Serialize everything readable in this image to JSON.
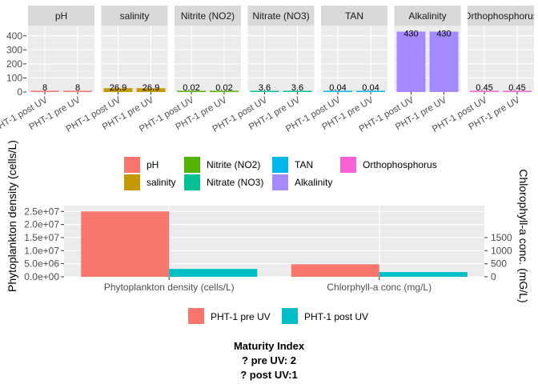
{
  "chart_data": [
    {
      "type": "bar",
      "facet_type": "faceted-bar",
      "facets": [
        "pH",
        "salinity",
        "Nitrite (NO2)",
        "Nitrate (NO3)",
        "TAN",
        "Alkalinity",
        "Orthophosphorus"
      ],
      "categories": [
        "PHT-1 post UV",
        "PHT-1 pre UV"
      ],
      "series": [
        {
          "name": "pH",
          "values": [
            8,
            8
          ],
          "labels": [
            "8",
            "8"
          ],
          "color": "#F8766D"
        },
        {
          "name": "salinity",
          "values": [
            26.9,
            26.9
          ],
          "labels": [
            "26.9",
            "26.9"
          ],
          "color": "#C49A00"
        },
        {
          "name": "Nitrite (NO2)",
          "values": [
            0.02,
            0.02
          ],
          "labels": [
            "0.02",
            "0.02"
          ],
          "color": "#53B400"
        },
        {
          "name": "Nitrate (NO3)",
          "values": [
            3.6,
            3.6
          ],
          "labels": [
            "3.6",
            "3.6"
          ],
          "color": "#00C094"
        },
        {
          "name": "TAN",
          "values": [
            0.04,
            0.04
          ],
          "labels": [
            "0.04",
            "0.04"
          ],
          "color": "#00B6EB"
        },
        {
          "name": "Alkalinity",
          "values": [
            430,
            430
          ],
          "labels": [
            "430",
            "430"
          ],
          "color": "#A58AFF"
        },
        {
          "name": "Orthophosphorus",
          "values": [
            0.45,
            0.45
          ],
          "labels": [
            "0.45",
            "0.45"
          ],
          "color": "#FB61D7"
        }
      ],
      "ylim": [
        0,
        450
      ],
      "yticks": [
        "0",
        "100",
        "200",
        "300",
        "400"
      ],
      "ytick_values": [
        0,
        100,
        200,
        300,
        400
      ],
      "legend": {
        "position": "bottom",
        "entries": [
          "pH",
          "salinity",
          "Nitrite (NO2)",
          "Nitrate (NO3)",
          "TAN",
          "Alkalinity",
          "Orthophosphorus"
        ]
      },
      "grid": true
    },
    {
      "type": "bar",
      "categories": [
        "Phytoplankton density (cells/L)",
        "Chlorphyll-a conc (mg/L)"
      ],
      "series": [
        {
          "name": "PHT-1 pre UV",
          "values": [
            25000000,
            4800000
          ],
          "color": "#F8766D"
        },
        {
          "name": "PHT-1 post UV",
          "values": [
            3000000,
            1800000
          ],
          "color": "#00BFC4"
        }
      ],
      "ylabel": "Phytoplankton density (cells/L)",
      "ylabel_right": "Chlorophyll-a conc. (mG/L)",
      "ylim": [
        0,
        26000000
      ],
      "yticks": [
        "0.0e+00",
        "5.0e+06",
        "1.0e+07",
        "1.5e+07",
        "2.0e+07",
        "2.5e+07"
      ],
      "ytick_values": [
        0,
        5000000,
        10000000,
        15000000,
        20000000,
        25000000
      ],
      "yticks_right": [
        "0",
        "500",
        "1000",
        "1500"
      ],
      "ytick_right_values": [
        0,
        500,
        1000,
        1500
      ],
      "secondary_axis_scale": 10000,
      "legend": {
        "position": "bottom",
        "entries": [
          "PHT-1 pre UV",
          "PHT-1 post UV"
        ]
      },
      "grid": true
    }
  ],
  "footer": {
    "line1": "Maturity Index",
    "line2": "? pre UV: 2",
    "line3": "? post UV:1"
  }
}
